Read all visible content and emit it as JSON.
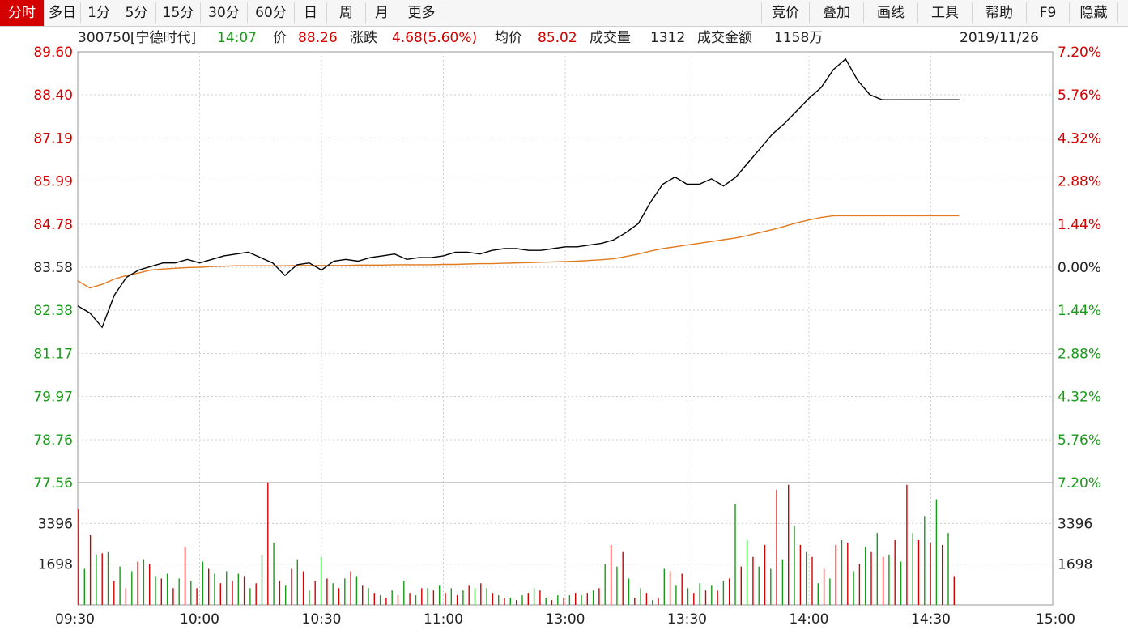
{
  "toolbar": {
    "period_tabs": [
      "分时",
      "多日",
      "1分",
      "5分",
      "15分",
      "30分",
      "60分",
      "日",
      "周",
      "月",
      "更多"
    ],
    "active_tab": "分时",
    "tool_buttons": [
      "竞价",
      "叠加",
      "画线",
      "工具",
      "帮助",
      "F9",
      "隐藏"
    ]
  },
  "info": {
    "code_name": "300750[宁德时代]",
    "time": "14:07",
    "price_label": "价",
    "price": "88.26",
    "change_label": "涨跌",
    "change": "4.68(5.60%)",
    "avg_label": "均价",
    "avg": "85.02",
    "volume_label": "成交量",
    "volume": "1312",
    "amount_label": "成交金额",
    "amount": "1158万",
    "date": "2019/11/26"
  },
  "colors": {
    "up": "#d40000",
    "down": "#1a9a1a",
    "price_line": "#000000",
    "avg_line": "#e07a1f",
    "grid": "#cfcfcf"
  },
  "chart_data": [
    {
      "type": "line",
      "name": "price",
      "reference_price": 83.58,
      "ylim": [
        77.56,
        89.6
      ],
      "left_ticks": [
        "89.60",
        "88.40",
        "87.19",
        "85.99",
        "84.78",
        "83.58",
        "82.38",
        "81.17",
        "79.97",
        "78.76",
        "77.56"
      ],
      "right_ticks": [
        "7.20%",
        "5.76%",
        "4.32%",
        "2.88%",
        "1.44%",
        "0.00%",
        "1.44%",
        "2.88%",
        "4.32%",
        "5.76%",
        "7.20%"
      ],
      "x_ticks": [
        "09:30",
        "10:00",
        "10:30",
        "11:00",
        "13:00",
        "13:30",
        "14:00",
        "14:30",
        "15:00"
      ],
      "x_minutes_elapsed": [
        0,
        3,
        6,
        9,
        12,
        15,
        18,
        21,
        24,
        27,
        30,
        33,
        36,
        39,
        42,
        45,
        48,
        51,
        54,
        57,
        60,
        63,
        66,
        69,
        72,
        75,
        78,
        81,
        84,
        87,
        90,
        93,
        96,
        99,
        102,
        105,
        108,
        111,
        114,
        117,
        120,
        123,
        126,
        129,
        132,
        135,
        138,
        141,
        144,
        147,
        150,
        153,
        156,
        159,
        162,
        165,
        168,
        171,
        174,
        177,
        180,
        183,
        186,
        189,
        192,
        195,
        198,
        201,
        204,
        207,
        210,
        213,
        216,
        217
      ],
      "series": [
        {
          "values": [
            82.5,
            82.3,
            81.9,
            82.8,
            83.3,
            83.5,
            83.6,
            83.7,
            83.7,
            83.8,
            83.7,
            83.8,
            83.9,
            83.95,
            84.0,
            83.85,
            83.7,
            83.35,
            83.65,
            83.7,
            83.5,
            83.75,
            83.8,
            83.75,
            83.85,
            83.9,
            83.95,
            83.8,
            83.85,
            83.85,
            83.9,
            84.0,
            84.0,
            83.95,
            84.05,
            84.1,
            84.1,
            84.05,
            84.05,
            84.1,
            84.15,
            84.15,
            84.2,
            84.25,
            84.35,
            84.55,
            84.8,
            85.4,
            85.9,
            86.1,
            85.9,
            85.9,
            86.05,
            85.85,
            86.1,
            86.5,
            86.9,
            87.3,
            87.6,
            87.95,
            88.3,
            88.6,
            89.1,
            89.4,
            88.8,
            88.4,
            88.26,
            88.26,
            88.26,
            88.26,
            88.26,
            88.26,
            88.26,
            88.26
          ]
        },
        {
          "values": [
            83.2,
            83.0,
            83.1,
            83.25,
            83.35,
            83.42,
            83.5,
            83.53,
            83.55,
            83.57,
            83.58,
            83.6,
            83.61,
            83.62,
            83.62,
            83.62,
            83.62,
            83.62,
            83.63,
            83.63,
            83.63,
            83.63,
            83.63,
            83.64,
            83.64,
            83.64,
            83.65,
            83.65,
            83.65,
            83.65,
            83.66,
            83.66,
            83.67,
            83.68,
            83.68,
            83.69,
            83.7,
            83.71,
            83.72,
            83.73,
            83.74,
            83.75,
            83.77,
            83.79,
            83.82,
            83.88,
            83.95,
            84.03,
            84.1,
            84.15,
            84.2,
            84.25,
            84.3,
            84.35,
            84.4,
            84.47,
            84.55,
            84.63,
            84.72,
            84.82,
            84.9,
            84.97,
            85.02,
            85.02,
            85.02,
            85.02,
            85.02,
            85.02,
            85.02,
            85.02,
            85.02,
            85.02,
            85.02,
            85.02
          ]
        }
      ]
    },
    {
      "type": "bar",
      "name": "volume",
      "left_ticks": [
        "3396",
        "1698"
      ],
      "right_ticks": [
        "3396",
        "1698"
      ],
      "max_label": "7.20%",
      "ylim": [
        0,
        5094
      ],
      "values": [
        4000,
        1500,
        2900,
        2100,
        2150,
        2200,
        1000,
        1600,
        700,
        1400,
        1800,
        1900,
        1700,
        1200,
        1100,
        1300,
        700,
        1100,
        2400,
        1000,
        700,
        1800,
        1500,
        1300,
        900,
        1400,
        1000,
        1300,
        1200,
        700,
        900,
        2100,
        5100,
        2600,
        1000,
        800,
        1500,
        1900,
        1400,
        600,
        1000,
        2000,
        1100,
        900,
        700,
        1100,
        1400,
        1200,
        800,
        700,
        500,
        400,
        300,
        600,
        400,
        1000,
        500,
        400,
        700,
        700,
        600,
        800,
        500,
        700,
        400,
        600,
        800,
        700,
        900,
        700,
        500,
        400,
        300,
        300,
        200,
        400,
        500,
        700,
        600,
        300,
        200,
        400,
        300,
        400,
        500,
        400,
        500,
        600,
        700,
        1700,
        2500,
        1600,
        2200,
        1100,
        300,
        700,
        500,
        200,
        300,
        1500,
        1400,
        800,
        1300,
        700,
        500,
        900,
        600,
        800,
        600,
        1000,
        1100,
        4200,
        1600,
        2700,
        2000,
        1600,
        2500,
        1500,
        4800,
        1900,
        5000,
        3300,
        2500,
        2200,
        2000,
        900,
        1500,
        1100,
        2500,
        2700,
        2600,
        1400,
        1700,
        2400,
        2200,
        3000,
        2000,
        2100,
        2700,
        1800,
        5000,
        3000,
        2700,
        3700,
        2600,
        4400,
        2500,
        3000,
        1200
      ]
    }
  ]
}
